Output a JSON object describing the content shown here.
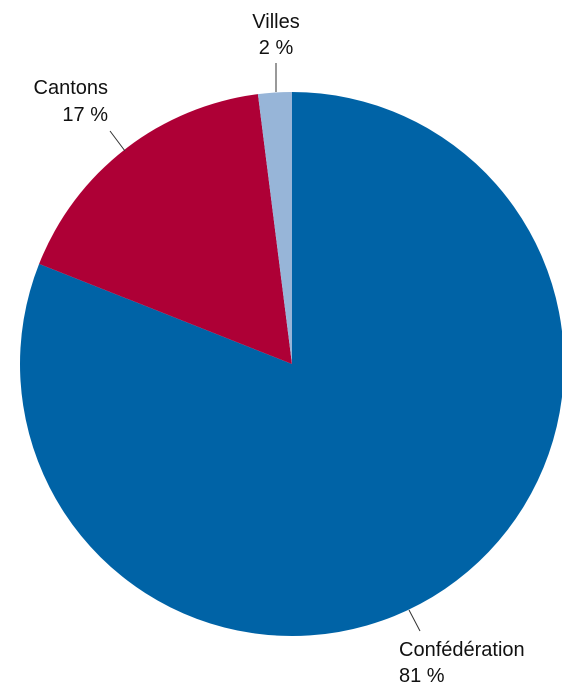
{
  "chart_data": {
    "type": "pie",
    "start_angle": "12 o'clock",
    "direction": "clockwise",
    "legend": "none",
    "slices": [
      {
        "label": "Confédération",
        "value": 81,
        "value_label": "81 %",
        "color": "#0063a6"
      },
      {
        "label": "Cantons",
        "value": 17,
        "value_label": "17 %",
        "color": "#ae0036"
      },
      {
        "label": "Villes",
        "value": 2,
        "value_label": "2 %",
        "color": "#97b5d8"
      }
    ]
  }
}
